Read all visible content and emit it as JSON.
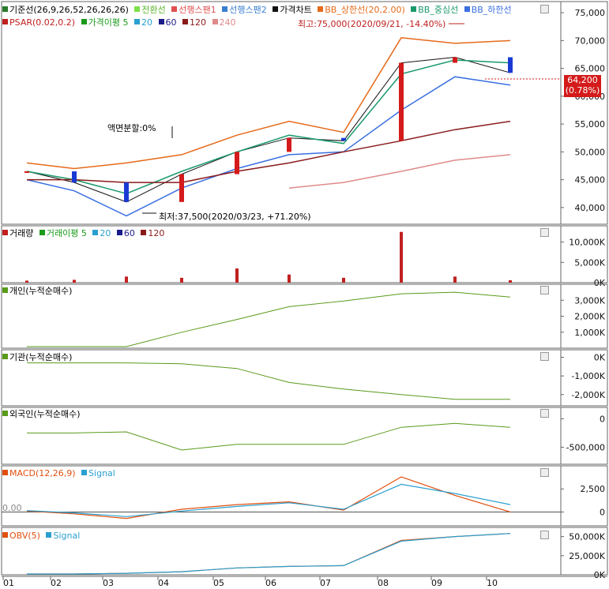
{
  "panels": {
    "price": {
      "legend_row1": [
        {
          "label": "기준선(26,9,26,52,26,26,26)",
          "color": "#2b7a2b"
        },
        {
          "label": "전환선",
          "color": "#7ee04a"
        },
        {
          "label": "선행스팬1",
          "color": "#e05050"
        },
        {
          "label": "선행스팬2",
          "color": "#3a7fd0"
        },
        {
          "label": "가격차트",
          "color": "#111111"
        },
        {
          "label": "BB_상한선(20,2.00)",
          "color": "#e56a1a"
        },
        {
          "label": "BB_중심선",
          "color": "#1a9a6a"
        },
        {
          "label": "BB_하한선",
          "color": "#3a6fe0"
        }
      ],
      "legend_row2": [
        {
          "label": "PSAR(0.02,0.2)",
          "color": "#c02020"
        },
        {
          "label": "가격이평 5",
          "color": "#1a9a1a"
        },
        {
          "label": "20",
          "color": "#2aa0d0"
        },
        {
          "label": "60",
          "color": "#1a1a8a"
        },
        {
          "label": "120",
          "color": "#8a1a1a"
        },
        {
          "label": "240",
          "color": "#e08a8a"
        }
      ],
      "annotation_high": "최고:75,000(2020/09/21, -14.40%)",
      "annotation_low": "최저:37,500(2020/03/23, +71.20%)",
      "annotation_split": "액면분할:0%",
      "current_price": "64,200",
      "current_change": "(0.78%)",
      "y_ticks": [
        "75,000",
        "70,000",
        "65,000",
        "60,000",
        "55,000",
        "50,000",
        "45,000",
        "40,000"
      ]
    },
    "volume": {
      "legend": [
        {
          "label": "거래량",
          "color": "#c02020"
        },
        {
          "label": "거래이평 5",
          "color": "#1a9a1a"
        },
        {
          "label": "20",
          "color": "#2aa0d0"
        },
        {
          "label": "60",
          "color": "#1a1a8a"
        },
        {
          "label": "120",
          "color": "#8a1a1a"
        }
      ],
      "y_ticks": [
        "10,000K",
        "5,000K",
        "0K"
      ]
    },
    "individual": {
      "legend": "개인(누적순매수)",
      "y_ticks": [
        "3,000K",
        "2,000K",
        "1,000K"
      ]
    },
    "institution": {
      "legend": "기관(누적순매수)",
      "y_ticks": [
        "0K",
        "-1,000K",
        "-2,000K"
      ]
    },
    "foreign": {
      "legend": "외국인(누적순매수)",
      "y_ticks": [
        "0",
        "-500,000"
      ]
    },
    "macd": {
      "legend": [
        {
          "label": "MACD(12,26,9)",
          "color": "#e05010"
        },
        {
          "label": "Signal",
          "color": "#2aa0d0"
        }
      ],
      "y_ticks": [
        "2,500",
        "0"
      ],
      "zero_label": "0.00"
    },
    "obv": {
      "legend": [
        {
          "label": "OBV(5)",
          "color": "#e05010"
        },
        {
          "label": "Signal",
          "color": "#2aa0d0"
        }
      ],
      "y_ticks": [
        "50,000K",
        "25,000K",
        "0K"
      ]
    }
  },
  "x_labels": [
    "01",
    "02",
    "03",
    "04",
    "05",
    "06",
    "07",
    "08",
    "09",
    "10"
  ],
  "chart_data": [
    {
      "type": "candlestick",
      "x": [
        "2020-01",
        "2020-02",
        "2020-03",
        "2020-04",
        "2020-05",
        "2020-06",
        "2020-07",
        "2020-08",
        "2020-09",
        "2020-10"
      ],
      "series": [
        {
          "name": "가격차트",
          "values": [
            46500,
            44500,
            41000,
            46000,
            50000,
            52500,
            52000,
            66000,
            67000,
            64200
          ]
        },
        {
          "name": "BB_상한선(20,2.00)",
          "values": [
            48000,
            47000,
            48000,
            49500,
            53000,
            55500,
            53500,
            70500,
            69500,
            70000
          ]
        },
        {
          "name": "BB_중심선",
          "values": [
            46500,
            45000,
            42500,
            46500,
            50000,
            53000,
            51500,
            64000,
            66500,
            66000
          ]
        },
        {
          "name": "BB_하한선",
          "values": [
            45000,
            43000,
            38500,
            43500,
            47000,
            49500,
            50000,
            57500,
            63500,
            62000
          ]
        },
        {
          "name": "120",
          "values": [
            45000,
            45000,
            44500,
            44500,
            46500,
            48000,
            50000,
            52000,
            54000,
            55500
          ]
        },
        {
          "name": "240",
          "values": [
            null,
            null,
            null,
            null,
            null,
            43500,
            44500,
            46500,
            48500,
            49500
          ]
        }
      ],
      "ylim": [
        37000,
        77000
      ],
      "annotations": [
        "최고:75,000(2020/09/21, -14.40%)",
        "최저:37,500(2020/03/23, +71.20%)",
        "액면분할:0%"
      ]
    },
    {
      "type": "bar",
      "x": [
        "2020-01",
        "2020-02",
        "2020-03",
        "2020-04",
        "2020-05",
        "2020-06",
        "2020-07",
        "2020-08",
        "2020-09",
        "2020-10"
      ],
      "series": [
        {
          "name": "거래량",
          "values": [
            500,
            700,
            1500,
            1200,
            3500,
            2000,
            1200,
            12500,
            1500,
            600
          ]
        }
      ],
      "ylim": [
        0,
        14000
      ]
    },
    {
      "type": "line",
      "x": [
        "2020-01",
        "2020-02",
        "2020-03",
        "2020-04",
        "2020-05",
        "2020-06",
        "2020-07",
        "2020-08",
        "2020-09",
        "2020-10"
      ],
      "series": [
        {
          "name": "개인(누적순매수)",
          "values": [
            100,
            100,
            100,
            1000,
            1800,
            2600,
            2950,
            3400,
            3500,
            3200
          ]
        }
      ],
      "ylim": [
        0,
        4000
      ]
    },
    {
      "type": "line",
      "x": [
        "2020-01",
        "2020-02",
        "2020-03",
        "2020-04",
        "2020-05",
        "2020-06",
        "2020-07",
        "2020-08",
        "2020-09",
        "2020-10"
      ],
      "series": [
        {
          "name": "기관(누적순매수)",
          "values": [
            -300,
            -300,
            -300,
            -350,
            -600,
            -1350,
            -1700,
            -2000,
            -2250,
            -2250
          ]
        }
      ],
      "ylim": [
        -2600,
        400
      ]
    },
    {
      "type": "line",
      "x": [
        "2020-01",
        "2020-02",
        "2020-03",
        "2020-04",
        "2020-05",
        "2020-06",
        "2020-07",
        "2020-08",
        "2020-09",
        "2020-10"
      ],
      "series": [
        {
          "name": "외국인(누적순매수)",
          "values": [
            -250000,
            -250000,
            -230000,
            -550000,
            -450000,
            -450000,
            -450000,
            -150000,
            -80000,
            -150000
          ]
        }
      ],
      "ylim": [
        -800000,
        200000
      ]
    },
    {
      "type": "line",
      "x": [
        "2020-01",
        "2020-02",
        "2020-03",
        "2020-04",
        "2020-05",
        "2020-06",
        "2020-07",
        "2020-08",
        "2020-09",
        "2020-10"
      ],
      "series": [
        {
          "name": "MACD(12,26,9)",
          "values": [
            100,
            -200,
            -700,
            300,
            800,
            1100,
            200,
            3800,
            1800,
            0
          ]
        },
        {
          "name": "Signal",
          "values": [
            150,
            -100,
            -500,
            100,
            600,
            1000,
            300,
            3000,
            2000,
            800
          ]
        }
      ],
      "ylim": [
        -1500,
        5000
      ]
    },
    {
      "type": "line",
      "x": [
        "2020-01",
        "2020-02",
        "2020-03",
        "2020-04",
        "2020-05",
        "2020-06",
        "2020-07",
        "2020-08",
        "2020-09",
        "2020-10"
      ],
      "series": [
        {
          "name": "OBV(5)",
          "values": [
            1000,
            1000,
            2000,
            4000,
            9000,
            11000,
            12000,
            45000,
            50000,
            54000
          ]
        },
        {
          "name": "Signal",
          "values": [
            1000,
            1000,
            2000,
            4000,
            9000,
            11000,
            12000,
            44000,
            50000,
            54000
          ]
        }
      ],
      "ylim": [
        0,
        62000
      ]
    }
  ]
}
